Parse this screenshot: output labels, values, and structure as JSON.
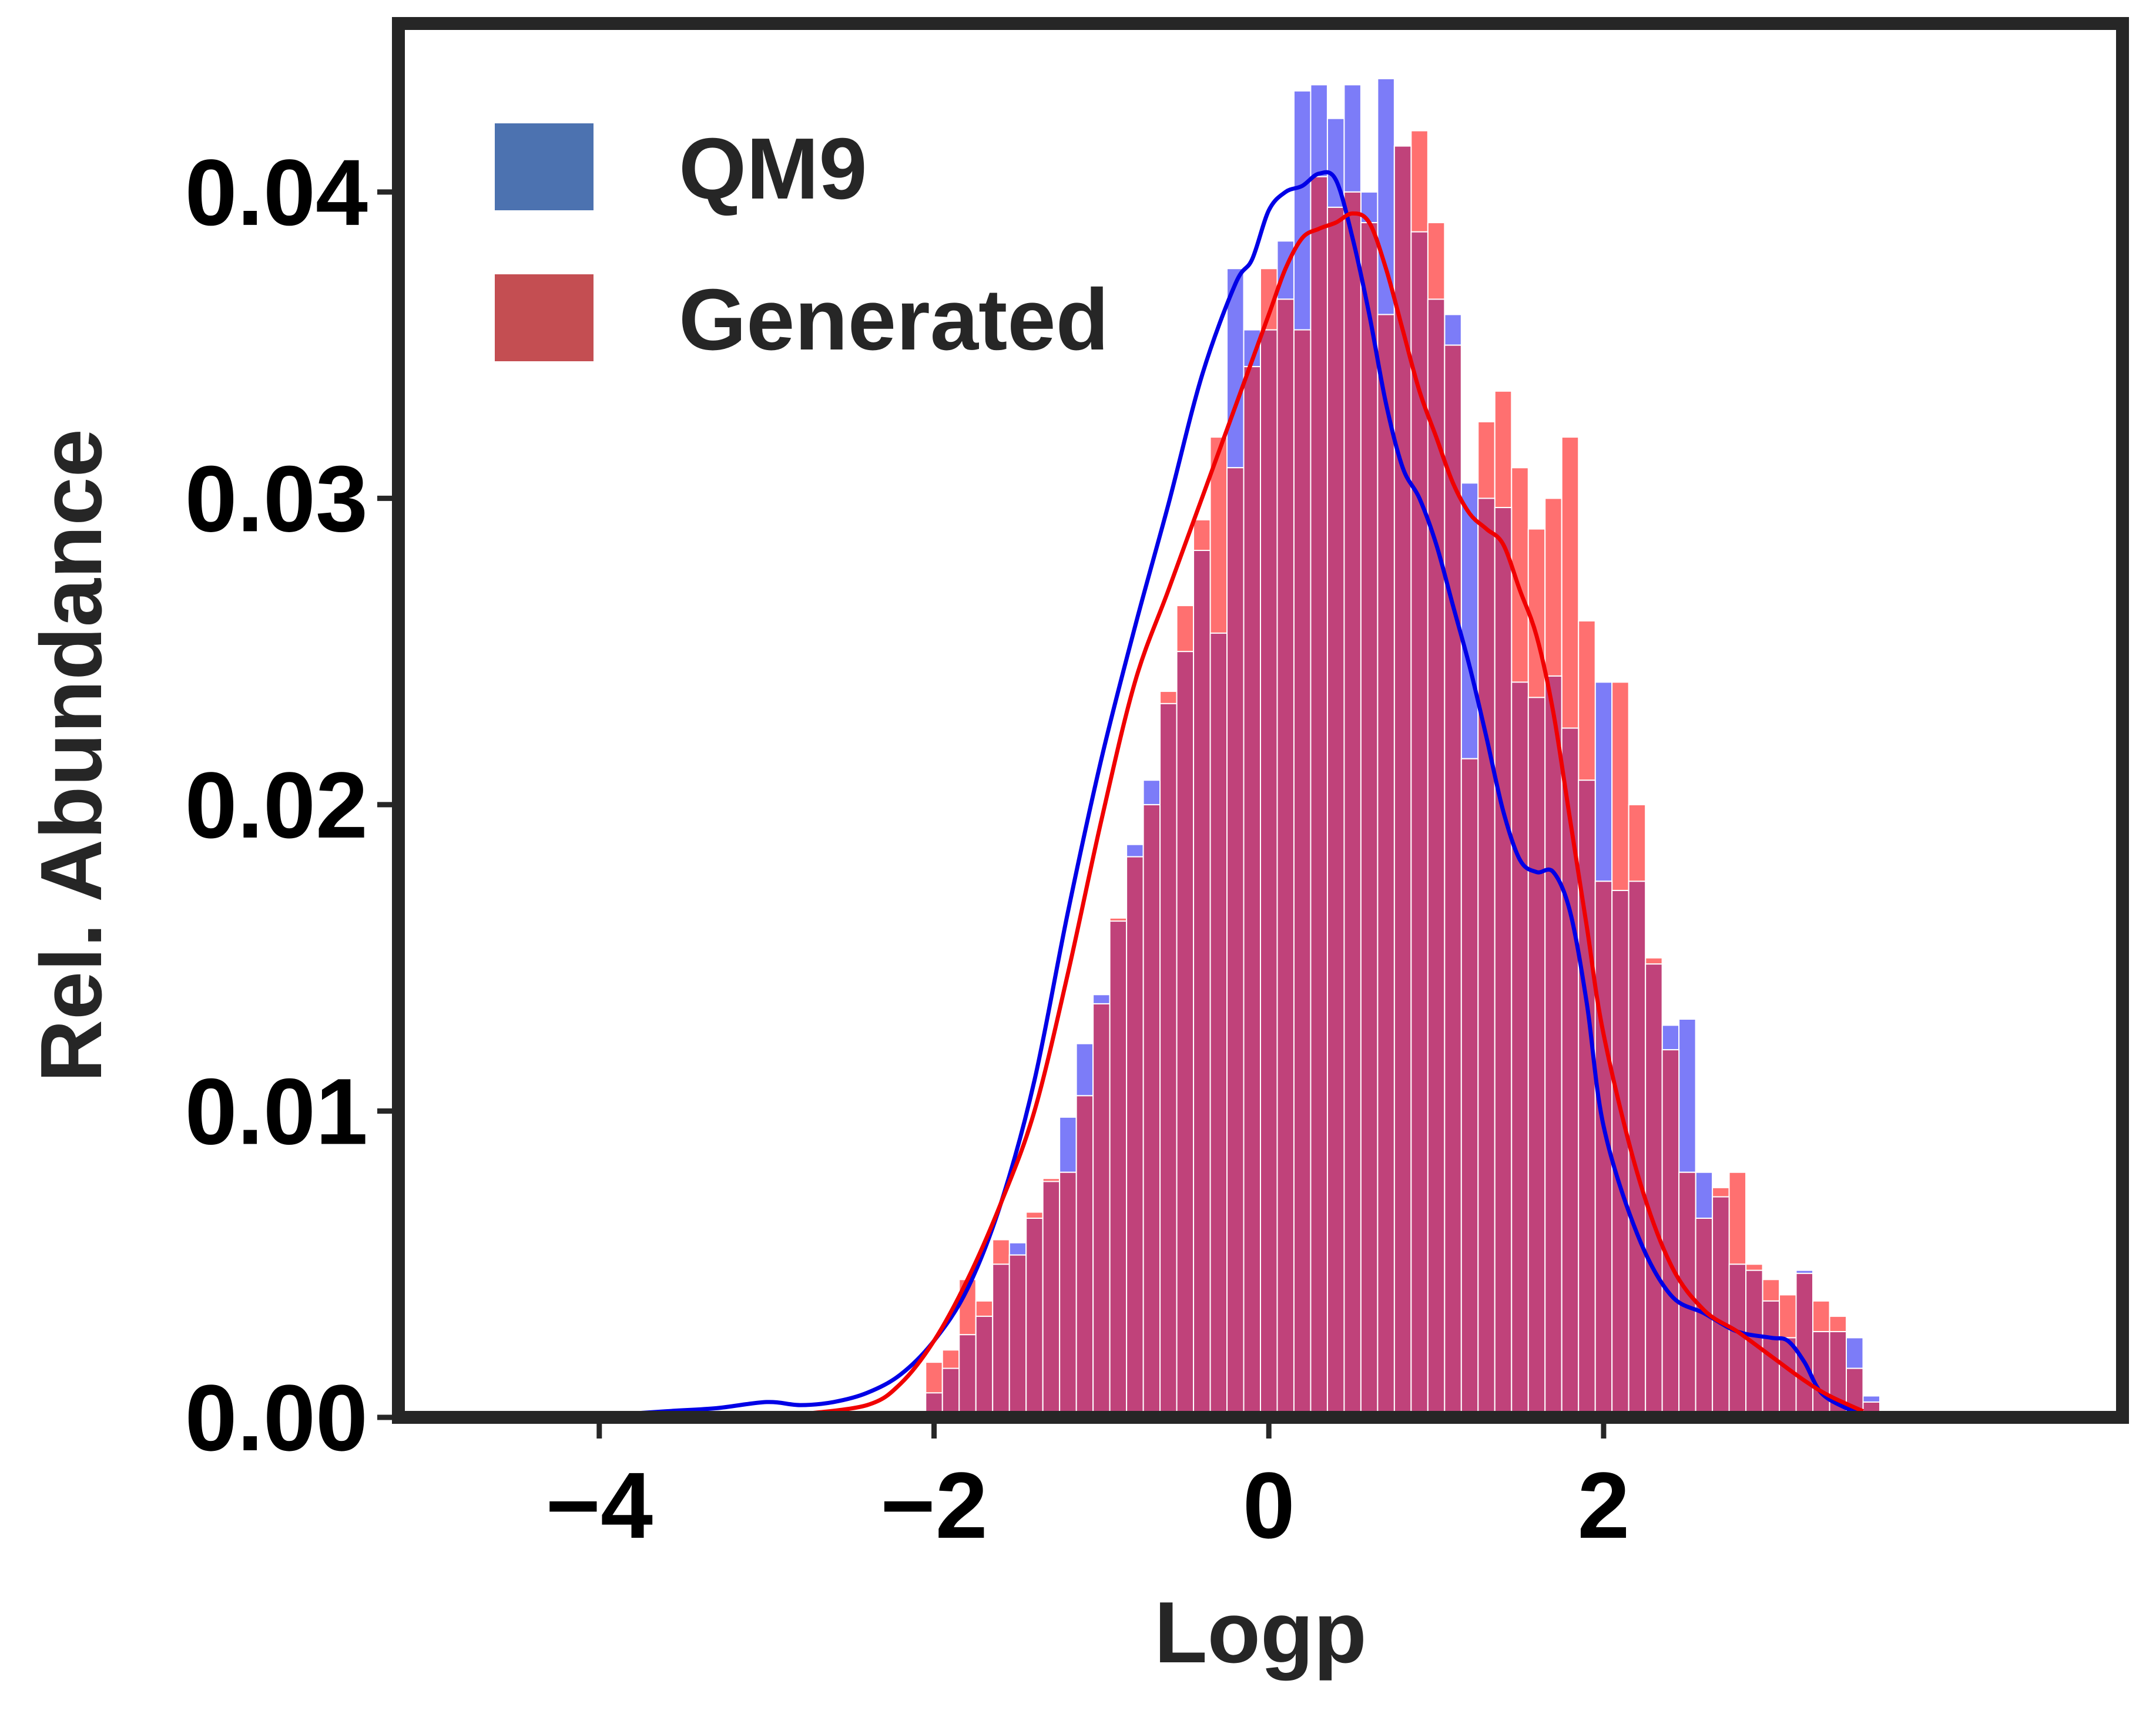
{
  "chart_data": {
    "type": "bar",
    "title": "",
    "xlabel": "Logp",
    "ylabel": "Rel. Abundance",
    "xlim": [
      -5.2,
      5.1
    ],
    "ylim": [
      0,
      0.0455
    ],
    "xticks": [
      -4,
      -2,
      0,
      2
    ],
    "xtick_labels": [
      "−4",
      "−2",
      "0",
      "2"
    ],
    "yticks": [
      0,
      0.01,
      0.02,
      0.03,
      0.04
    ],
    "ytick_labels": [
      "0.00",
      "0.01",
      "0.02",
      "0.03",
      "0.04"
    ],
    "grid": false,
    "legend_position": "top-left",
    "bin_start": -2.05,
    "bin_width": 0.1,
    "series": [
      {
        "name": "QM9",
        "legend_color": "#4c72b0",
        "bar_color": "#7c7cf8",
        "line_color": "#0000e6",
        "values": [
          0.0008,
          0.0016,
          0.0027,
          0.0033,
          0.005,
          0.0057,
          0.0065,
          0.0077,
          0.0098,
          0.0122,
          0.0138,
          0.0162,
          0.0187,
          0.0208,
          0.0233,
          0.025,
          0.0283,
          0.0256,
          0.0375,
          0.0355,
          0.0355,
          0.0384,
          0.0433,
          0.0435,
          0.0424,
          0.0435,
          0.04,
          0.0437,
          0.0415,
          0.0387,
          0.0365,
          0.036,
          0.0305,
          0.03,
          0.0297,
          0.024,
          0.0235,
          0.0242,
          0.0225,
          0.0208,
          0.024,
          0.0172,
          0.0175,
          0.0148,
          0.0128,
          0.013,
          0.008,
          0.0072,
          0.005,
          0.0048,
          0.0038,
          0.0026,
          0.0048,
          0.0028,
          0.0028,
          0.0026,
          0.0007
        ],
        "kde_x": [
          -4.0,
          -3.6,
          -3.3,
          -3.0,
          -2.8,
          -2.6,
          -2.4,
          -2.2,
          -2.0,
          -1.8,
          -1.6,
          -1.4,
          -1.2,
          -1.0,
          -0.8,
          -0.6,
          -0.4,
          -0.2,
          -0.1,
          0.0,
          0.1,
          0.2,
          0.3,
          0.4,
          0.5,
          0.6,
          0.7,
          0.8,
          0.9,
          1.0,
          1.1,
          1.2,
          1.3,
          1.4,
          1.5,
          1.6,
          1.7,
          1.8,
          1.9,
          2.0,
          2.2,
          2.4,
          2.6,
          2.8,
          3.0,
          3.1,
          3.2,
          3.3,
          3.45,
          3.55
        ],
        "kde_y": [
          5e-05,
          0.0002,
          0.0003,
          0.0005,
          0.0004,
          0.0005,
          0.0008,
          0.0014,
          0.0025,
          0.0042,
          0.007,
          0.011,
          0.0165,
          0.0215,
          0.0258,
          0.0298,
          0.034,
          0.037,
          0.0378,
          0.0394,
          0.04,
          0.0402,
          0.0406,
          0.0404,
          0.0385,
          0.036,
          0.0331,
          0.031,
          0.03,
          0.0285,
          0.0265,
          0.0245,
          0.0222,
          0.0198,
          0.0182,
          0.0178,
          0.0178,
          0.0165,
          0.0135,
          0.0095,
          0.006,
          0.004,
          0.0034,
          0.0028,
          0.0026,
          0.0025,
          0.0018,
          0.0008,
          0.0003,
          0.0001
        ]
      },
      {
        "name": "Generated",
        "legend_color": "#c44e52",
        "bar_color": "#ff7070",
        "line_color": "#f00000",
        "values": [
          0.0018,
          0.0022,
          0.0045,
          0.0038,
          0.0058,
          0.0053,
          0.0067,
          0.0078,
          0.008,
          0.0105,
          0.0135,
          0.0163,
          0.0183,
          0.02,
          0.0237,
          0.0265,
          0.0293,
          0.032,
          0.031,
          0.0343,
          0.0375,
          0.0365,
          0.0355,
          0.0405,
          0.0395,
          0.04,
          0.039,
          0.036,
          0.0415,
          0.042,
          0.039,
          0.035,
          0.0215,
          0.0325,
          0.0335,
          0.031,
          0.029,
          0.03,
          0.032,
          0.026,
          0.0175,
          0.024,
          0.02,
          0.015,
          0.012,
          0.008,
          0.0065,
          0.0075,
          0.008,
          0.005,
          0.0045,
          0.004,
          0.0047,
          0.0038,
          0.0033,
          0.0016,
          0.0005
        ]
      }
    ],
    "overlap_color": "#c0427a",
    "kde2_x": [
      -2.8,
      -2.4,
      -2.2,
      -2.0,
      -1.8,
      -1.6,
      -1.4,
      -1.2,
      -1.0,
      -0.8,
      -0.6,
      -0.4,
      -0.2,
      0.0,
      0.1,
      0.2,
      0.3,
      0.4,
      0.5,
      0.6,
      0.7,
      0.8,
      0.9,
      1.0,
      1.1,
      1.2,
      1.3,
      1.4,
      1.5,
      1.6,
      1.7,
      1.8,
      1.9,
      2.0,
      2.2,
      2.4,
      2.6,
      2.8,
      3.0,
      3.2,
      3.35,
      3.55
    ],
    "kde2_y": [
      0.0001,
      0.0004,
      0.0011,
      0.0025,
      0.0045,
      0.007,
      0.01,
      0.0145,
      0.0195,
      0.024,
      0.027,
      0.03,
      0.033,
      0.036,
      0.0375,
      0.0385,
      0.0388,
      0.039,
      0.0393,
      0.039,
      0.0375,
      0.0355,
      0.0335,
      0.032,
      0.0305,
      0.0295,
      0.029,
      0.0285,
      0.027,
      0.0255,
      0.023,
      0.0195,
      0.016,
      0.0125,
      0.008,
      0.005,
      0.0035,
      0.0028,
      0.002,
      0.0012,
      0.0007,
      0.0002
    ]
  }
}
